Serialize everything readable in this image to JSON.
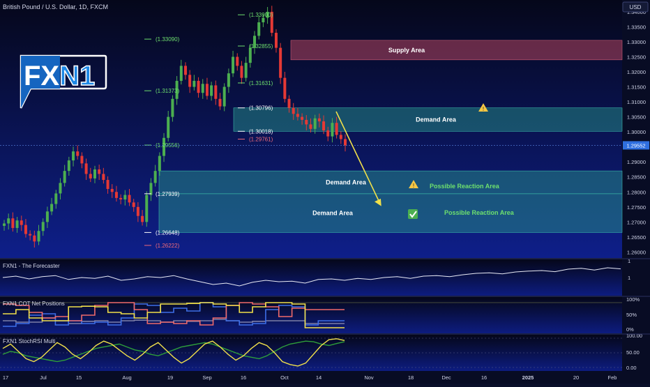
{
  "header": {
    "title": "British Pound / U.S. Dollar, 1D, FXCM",
    "currency": "USD"
  },
  "logo": {
    "text": "FXN1"
  },
  "colors": {
    "bg_top": "#06081a",
    "bg_bottom": "#10208a",
    "up": "#4caf50",
    "down": "#e53935",
    "supply": "#b4455f",
    "demand": "#2a9d8f",
    "label_green": "#6ee06e",
    "label_red": "#f06a7a",
    "axis_text": "#d0d4e8"
  },
  "chart_data": {
    "type": "candlestick",
    "title": "British Pound / U.S. Dollar, 1D, FXCM",
    "ylim": [
      1.258,
      1.343
    ],
    "price_ticks": [
      "1.34000",
      "1.33500",
      "1.33000",
      "1.32500",
      "1.32000",
      "1.31500",
      "1.31000",
      "1.30500",
      "1.30000",
      "1.29500",
      "1.29000",
      "1.28500",
      "1.28000",
      "1.27500",
      "1.27000",
      "1.26500",
      "1.26000"
    ],
    "last_price": "1.29552",
    "last_price_value": 1.29552,
    "time_labels": [
      "17",
      "Jul",
      "15",
      "Aug",
      "19",
      "Sep",
      "16",
      "Oct",
      "14",
      "Nov",
      "18",
      "Dec",
      "16",
      "2025",
      "20",
      "Feb"
    ],
    "closes": [
      1.2695,
      1.2712,
      1.268,
      1.2705,
      1.269,
      1.266,
      1.2655,
      1.2635,
      1.267,
      1.27,
      1.2735,
      1.276,
      1.2795,
      1.283,
      1.287,
      1.2905,
      1.2935,
      1.292,
      1.2895,
      1.286,
      1.2845,
      1.2875,
      1.286,
      1.284,
      1.281,
      1.28,
      1.278,
      1.2775,
      1.279,
      1.2765,
      1.275,
      1.272,
      1.27,
      1.279,
      1.283,
      1.287,
      1.292,
      1.298,
      1.305,
      1.311,
      1.317,
      1.322,
      1.319,
      1.315,
      1.317,
      1.313,
      1.316,
      1.312,
      1.3155,
      1.311,
      1.3085,
      1.315,
      1.3195,
      1.325,
      1.322,
      1.318,
      1.323,
      1.328,
      1.332,
      1.3365,
      1.338,
      1.34,
      1.333,
      1.328,
      1.318,
      1.311,
      1.308,
      1.306,
      1.305,
      1.304,
      1.3025,
      1.301,
      1.3045,
      1.3035,
      1.3005,
      1.2985,
      1.303,
      1.299,
      1.2976,
      1.2955
    ],
    "price_labels": [
      {
        "text": "(1.33900)",
        "price": 1.339,
        "color": "green"
      },
      {
        "text": "(1.33090)",
        "price": 1.3309,
        "color": "green"
      },
      {
        "text": "(1.32855)",
        "price": 1.3286,
        "color": "green"
      },
      {
        "text": "(1.31631)",
        "price": 1.3163,
        "color": "green"
      },
      {
        "text": "(1.31373)",
        "price": 1.3137,
        "color": "green"
      },
      {
        "text": "(1.30796)",
        "price": 1.308,
        "color": "white"
      },
      {
        "text": "(1.30018)",
        "price": 1.3002,
        "color": "white"
      },
      {
        "text": "(1.29761)",
        "price": 1.2976,
        "color": "red"
      },
      {
        "text": "(1.29556)",
        "price": 1.2956,
        "color": "green"
      },
      {
        "text": "(1.27939)",
        "price": 1.2794,
        "color": "white"
      },
      {
        "text": "(1.26648)",
        "price": 1.2665,
        "color": "white"
      },
      {
        "text": "(1.26222)",
        "price": 1.2622,
        "color": "red"
      }
    ],
    "zones": [
      {
        "name": "Supply Area",
        "top": 1.3305,
        "bottom": 1.324,
        "kind": "supply"
      },
      {
        "name": "Demand Area",
        "top": 1.308,
        "bottom": 1.3002,
        "kind": "demand"
      },
      {
        "name": "Demand Area",
        "top": 1.287,
        "bottom": 1.2794,
        "kind": "demand"
      },
      {
        "name": "Demand Area",
        "top": 1.2794,
        "bottom": 1.2665,
        "kind": "demand"
      }
    ],
    "reaction_labels": [
      "Possible Reaction Area",
      "Possible Reaction Area"
    ]
  },
  "indicators": {
    "forecaster": {
      "name": "FXN1 - The Forecaster",
      "ticks": [
        "1",
        "1"
      ],
      "values": [
        0.55,
        0.6,
        0.5,
        0.58,
        0.62,
        0.48,
        0.55,
        0.52,
        0.6,
        0.45,
        0.5,
        0.58,
        0.55,
        0.62,
        0.5,
        0.4,
        0.3,
        0.35,
        0.25,
        0.38,
        0.45,
        0.4,
        0.42,
        0.35,
        0.48,
        0.5,
        0.45,
        0.52,
        0.48,
        0.55,
        0.58,
        0.52,
        0.6,
        0.62,
        0.58,
        0.65,
        0.7,
        0.72,
        0.68,
        0.75,
        0.78,
        0.8,
        0.76,
        0.85,
        0.88,
        0.82,
        0.9,
        0.86
      ]
    },
    "cot": {
      "name": "FXN1 COT Net Positions",
      "ticks": [
        "100%",
        "50%",
        "0%"
      ],
      "yellow": [
        0.55,
        0.7,
        0.4,
        0.3,
        0.3,
        0.8,
        0.82,
        0.8,
        0.6,
        0.55,
        0.4,
        0.6,
        0.9,
        0.9,
        0.92,
        0.95,
        0.9,
        0.85,
        0.6,
        0.8,
        0.95,
        0.95,
        0.9,
        0.05,
        0.05,
        0.05,
        0.05
      ],
      "red": [
        0.9,
        0.85,
        0.6,
        0.4,
        0.45,
        0.3,
        0.5,
        0.85,
        0.95,
        0.95,
        0.7,
        0.2,
        0.25,
        0.2,
        0.3,
        0.15,
        0.4,
        0.85,
        0.95,
        0.9,
        0.8,
        0.45,
        0.75,
        0.7,
        0.7,
        0.7,
        0.7
      ],
      "blue": [
        0.1,
        0.2,
        0.5,
        0.55,
        0.15,
        0.3,
        0.2,
        0.25,
        0.15,
        0.4,
        0.9,
        0.85,
        0.6,
        0.75,
        0.65,
        0.95,
        0.8,
        0.3,
        0.15,
        0.2,
        0.7,
        0.85,
        0.8,
        0.15,
        0.3,
        0.3,
        0.3
      ],
      "grey": [
        0.3,
        0.25,
        0.25,
        0.4,
        0.3,
        0.2,
        0.28,
        0.3,
        0.25,
        0.3,
        0.32,
        0.3,
        0.25,
        0.3,
        0.28,
        0.3,
        0.35,
        0.3,
        0.25,
        0.28,
        0.3,
        0.3,
        0.3,
        0.2,
        0.2,
        0.2,
        0.2
      ]
    },
    "stochrsi": {
      "name": "FXN1 StochRSI Multi",
      "ticks": [
        "100.00",
        "50.00",
        "0.00"
      ],
      "yellow": [
        65,
        80,
        55,
        30,
        20,
        35,
        60,
        85,
        70,
        45,
        30,
        50,
        75,
        90,
        80,
        60,
        40,
        25,
        45,
        70,
        85,
        60,
        35,
        15,
        30,
        55,
        80,
        90,
        70,
        45,
        25,
        40,
        65,
        85,
        75,
        50,
        20,
        10,
        5,
        15,
        45,
        75,
        95,
        98,
        92
      ],
      "green": [
        45,
        55,
        50,
        40,
        35,
        30,
        25,
        20,
        25,
        35,
        45,
        55,
        65,
        70,
        75,
        80,
        70,
        60,
        55,
        45,
        40,
        50,
        60,
        70,
        75,
        80,
        85,
        80,
        70,
        60,
        50,
        40,
        35,
        30,
        40,
        55,
        70,
        80,
        85,
        90,
        88,
        80,
        75,
        82,
        88
      ]
    }
  }
}
